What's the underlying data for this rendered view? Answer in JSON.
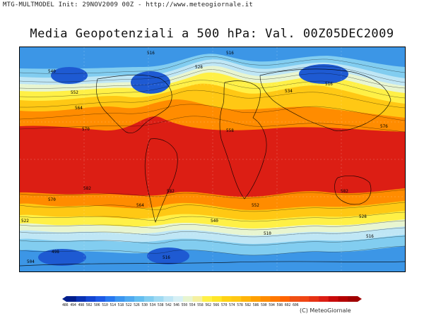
{
  "header": {
    "text": "MTG-MULTMODEL Init: 29NOV2009 00Z - http://www.meteogiornale.it"
  },
  "title": "Media Geopotenziali a 500 hPa: Val. 00Z05DEC2009",
  "map": {
    "variable": "500 hPa geopotential height (dam)",
    "band_colors": {
      "polar_low": "#1e5ad2",
      "cold": "#3c96e6",
      "cool": "#82cdf0",
      "mild": "#bfe6f5",
      "transition": "#e8f5d0",
      "warm": "#fff046",
      "warmer": "#ffc814",
      "hot": "#ff8c00",
      "hotter": "#f04614",
      "tropical": "#dc1e14"
    },
    "contour_labels": [
      "516",
      "516",
      "516",
      "528",
      "552",
      "564",
      "570",
      "540",
      "534",
      "558",
      "576",
      "582",
      "582",
      "582",
      "570",
      "564",
      "552",
      "540",
      "528",
      "522",
      "516",
      "510",
      "498",
      "504",
      "516"
    ]
  },
  "colorbar": {
    "labels_text": "486 494 498 502 506 510 514 518 522 526 530 534 538 542 546 550 554 558 562 566 570 574 578 582 586 590 594 598 602 606",
    "colors": [
      "#001e8c",
      "#0a32b4",
      "#1446d2",
      "#1e5ae6",
      "#2878f0",
      "#3c96f0",
      "#50aaf0",
      "#64bef0",
      "#82cdf0",
      "#a0daf2",
      "#bfe6f5",
      "#d7f0f5",
      "#e8f5d0",
      "#f5f0a0",
      "#fff046",
      "#ffe628",
      "#ffd214",
      "#ffc814",
      "#ffb40a",
      "#ffa000",
      "#ff8c00",
      "#ff7800",
      "#ff6400",
      "#f05014",
      "#f04614",
      "#e63214",
      "#dc1e14",
      "#c80a0a",
      "#b40000",
      "#a00000"
    ]
  },
  "copyright": "(C) MeteoGiornale"
}
